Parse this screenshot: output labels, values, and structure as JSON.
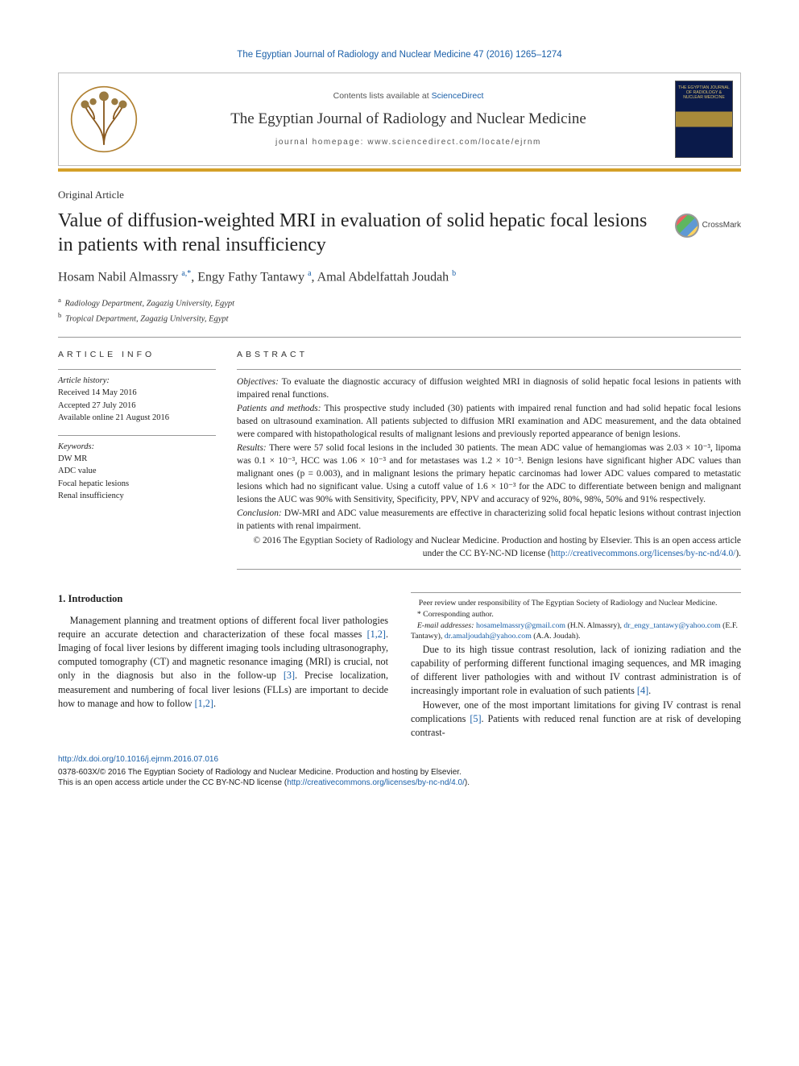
{
  "running_head": "The Egyptian Journal of Radiology and Nuclear Medicine 47 (2016) 1265–1274",
  "masthead": {
    "contents_prefix": "Contents lists available at ",
    "contents_link": "ScienceDirect",
    "journal_name": "The Egyptian Journal of Radiology and Nuclear Medicine",
    "homepage": "journal homepage: www.sciencedirect.com/locate/ejrnm",
    "cover_text": "THE EGYPTIAN JOURNAL OF RADIOLOGY & NUCLEAR MEDICINE"
  },
  "colors": {
    "accent_bar": "#d4a028",
    "link": "#1a5fa8",
    "rule": "#999999"
  },
  "article_type": "Original Article",
  "title": "Value of diffusion-weighted MRI in evaluation of solid hepatic focal lesions in patients with renal insufficiency",
  "crossmark_label": "CrossMark",
  "authors_html": "Hosam Nabil Almassry <sup>a,*</sup>, Engy Fathy Tantawy <sup>a</sup>, Amal Abdelfattah Joudah <sup>b</sup>",
  "affiliations": [
    {
      "sup": "a",
      "text": "Radiology Department, Zagazig University, Egypt"
    },
    {
      "sup": "b",
      "text": "Tropical Department, Zagazig University, Egypt"
    }
  ],
  "article_info": {
    "heading": "ARTICLE INFO",
    "history_label": "Article history:",
    "history": [
      "Received 14 May 2016",
      "Accepted 27 July 2016",
      "Available online 21 August 2016"
    ],
    "keywords_label": "Keywords:",
    "keywords": [
      "DW MR",
      "ADC value",
      "Focal hepatic lesions",
      "Renal insufficiency"
    ]
  },
  "abstract": {
    "heading": "ABSTRACT",
    "objectives_label": "Objectives:",
    "objectives": "To evaluate the diagnostic accuracy of diffusion weighted MRI in diagnosis of solid hepatic focal lesions in patients with impaired renal functions.",
    "methods_label": "Patients and methods:",
    "methods": "This prospective study included (30) patients with impaired renal function and had solid hepatic focal lesions based on ultrasound examination. All patients subjected to diffusion MRI examination and ADC measurement, and the data obtained were compared with histopathological results of malignant lesions and previously reported appearance of benign lesions.",
    "results_label": "Results:",
    "results": "There were 57 solid focal lesions in the included 30 patients. The mean ADC value of hemangiomas was 2.03 × 10⁻³, lipoma was 0.1 × 10⁻³, HCC was 1.06 × 10⁻³ and for metastases was 1.2 × 10⁻³. Benign lesions have significant higher ADC values than malignant ones (p = 0.003), and in malignant lesions the primary hepatic carcinomas had lower ADC values compared to metastatic lesions which had no significant value. Using a cutoff value of 1.6 × 10⁻³ for the ADC to differentiate between benign and malignant lesions the AUC was 90% with Sensitivity, Specificity, PPV, NPV and accuracy of 92%, 80%, 98%, 50% and 91% respectively.",
    "conclusion_label": "Conclusion:",
    "conclusion": "DW-MRI and ADC value measurements are effective in characterizing solid focal hepatic lesions without contrast injection in patients with renal impairment.",
    "copyright": "© 2016 The Egyptian Society of Radiology and Nuclear Medicine. Production and hosting by Elsevier. This is an open access article under the CC BY-NC-ND license (",
    "cc_link_text": "http://creativecommons.org/licenses/by-nc-nd/4.0/",
    "copyright_tail": ")."
  },
  "body": {
    "section_heading": "1. Introduction",
    "p1": "Management planning and treatment options of different focal liver pathologies require an accurate detection and characterization of these focal masses [1,2]. Imaging of focal liver lesions by different imaging tools including ultrasonography, computed tomography (CT) and magnetic resonance imaging (MRI) is crucial, not only in the diagnosis but also in the follow-up [3]. Precise localization, measurement and numbering of focal liver lesions (FLLs) are important to decide how to manage and how to follow [1,2].",
    "p2": "Due to its high tissue contrast resolution, lack of ionizing radiation and the capability of performing different functional imaging sequences, and MR imaging of different liver pathologies with and without IV contrast administration is of increasingly important role in evaluation of such patients [4].",
    "p3": "However, one of the most important limitations for giving IV contrast is renal complications [5]. Patients with reduced renal function are at risk of developing contrast-",
    "refs": {
      "r12": "[1,2]",
      "r3": "[3]",
      "r4": "[4]",
      "r5": "[5]"
    }
  },
  "footnotes": {
    "peer": "Peer review under responsibility of The Egyptian Society of Radiology and Nuclear Medicine.",
    "corr": "* Corresponding author.",
    "emails_label": "E-mail addresses:",
    "emails": [
      {
        "addr": "hosamelmassry@gmail.com",
        "who": "(H.N. Almassry)"
      },
      {
        "addr": "dr_engy_tantawy@yahoo.com",
        "who": "(E.F. Tantawy)"
      },
      {
        "addr": "dr.amaljoudah@yahoo.com",
        "who": "(A.A. Joudah)"
      }
    ]
  },
  "bottom": {
    "doi": "http://dx.doi.org/10.1016/j.ejrnm.2016.07.016",
    "issn_line": "0378-603X/© 2016 The Egyptian Society of Radiology and Nuclear Medicine. Production and hosting by Elsevier.",
    "oa_line_prefix": "This is an open access article under the CC BY-NC-ND license (",
    "oa_link": "http://creativecommons.org/licenses/by-nc-nd/4.0/",
    "oa_line_suffix": ")."
  }
}
